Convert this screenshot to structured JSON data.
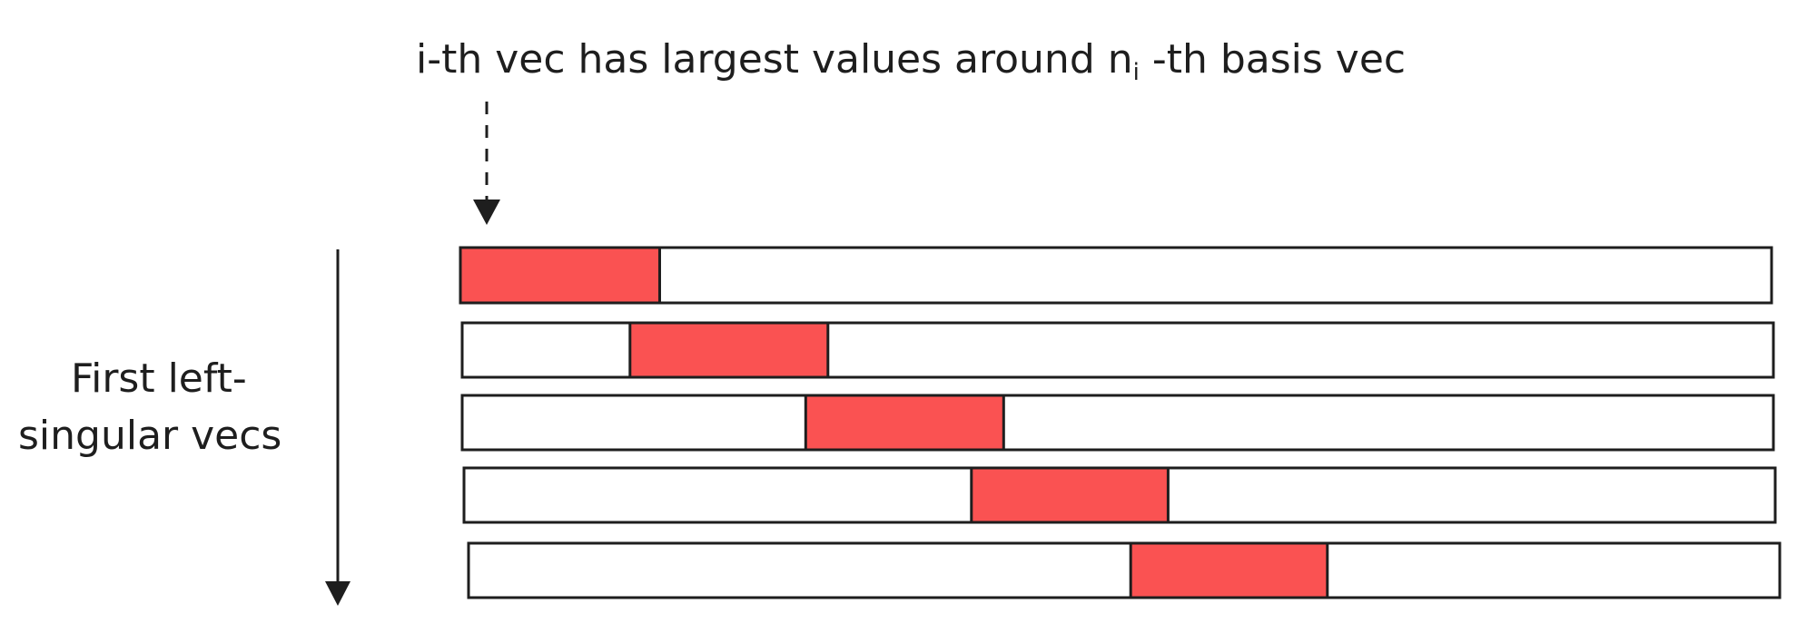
{
  "annotation": {
    "prefix": "i-th vec has largest values around n",
    "subscript": "i",
    "suffix": " -th basis vec"
  },
  "axis_label": {
    "line1": "First left-",
    "line2": "singular vecs"
  },
  "colors": {
    "stroke": "#1e1e1e",
    "highlight": "#fa5252",
    "background": "#ffffff"
  },
  "vectors": [
    {
      "highlight_start": 0.0,
      "highlight_end": 0.152
    },
    {
      "highlight_start": 0.128,
      "highlight_end": 0.279
    },
    {
      "highlight_start": 0.262,
      "highlight_end": 0.413
    },
    {
      "highlight_start": 0.387,
      "highlight_end": 0.537
    },
    {
      "highlight_start": 0.505,
      "highlight_end": 0.655
    }
  ]
}
